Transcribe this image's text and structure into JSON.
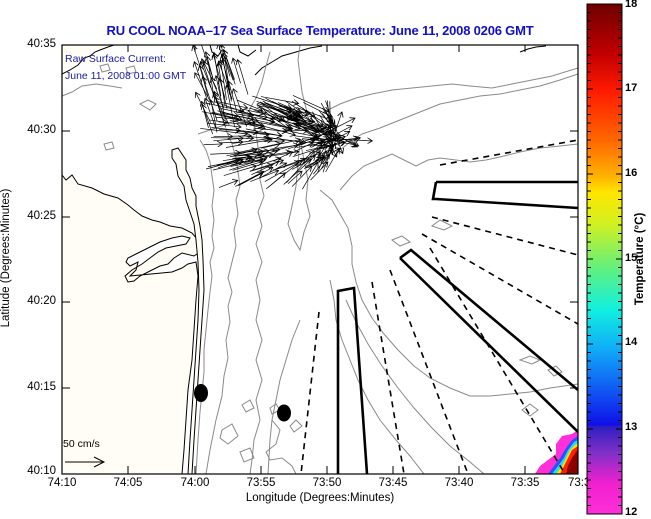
{
  "header": {
    "title": "RU COOL  NOAA–17  Sea Surface Temperature:  June 11, 2008 0206 GMT"
  },
  "map": {
    "annotation_line1": "Raw Surface Current:",
    "annotation_line2": "June 11, 2008 01:00 GMT",
    "scale_arrow_label": "50 cm/s",
    "x_axis": {
      "label": "Longitude (Degrees:Minutes)",
      "ticks": [
        "74:10",
        "74:05",
        "74:00",
        "73:55",
        "73:50",
        "73:45",
        "73:40",
        "73:35",
        "73:3"
      ]
    },
    "y_axis": {
      "label": "Latitude (Degrees:Minutes)",
      "ticks": [
        "40:35",
        "40:30",
        "40:25",
        "40:20",
        "40:15",
        "40:10"
      ]
    },
    "colors": {
      "title": "#1010c8",
      "annotation": "#1a1aa8",
      "land": "#fffdf5",
      "contour": "#8a8a8a"
    }
  },
  "colorbar": {
    "title": "Temperature (°C)",
    "min": 12,
    "max": 18,
    "tick_labels": [
      "18",
      "17",
      "16",
      "15",
      "14",
      "13",
      "12"
    ]
  }
}
